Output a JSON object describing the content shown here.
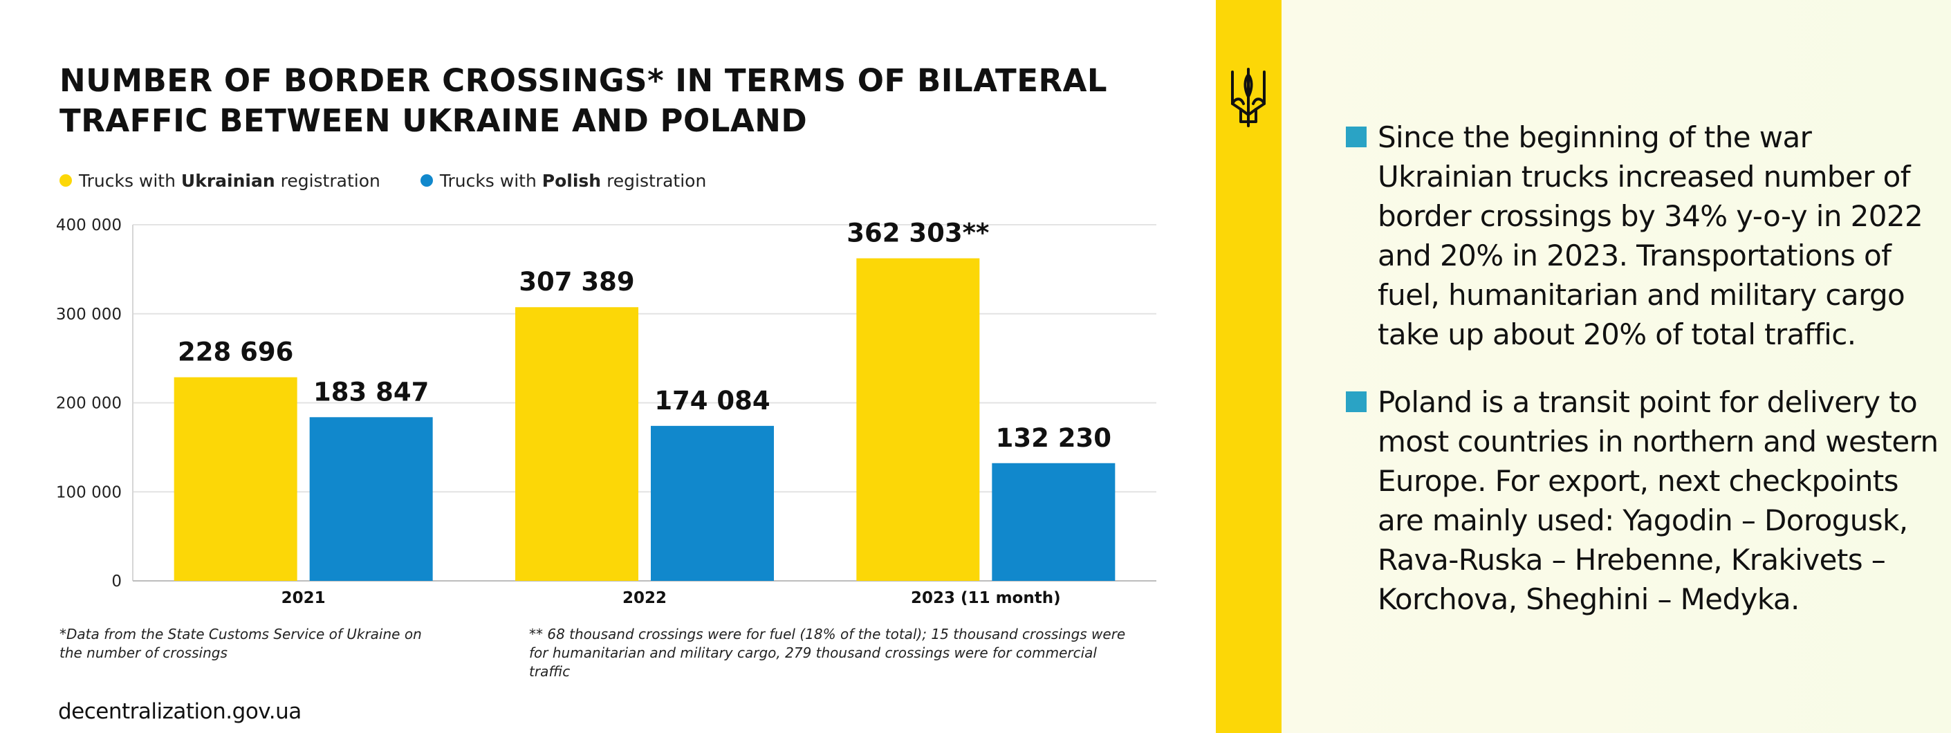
{
  "title_lines": [
    "NUMBER OF BORDER CROSSINGS* IN TERMS OF BILATERAL",
    "TRAFFIC BETWEEN UKRAINE AND POLAND"
  ],
  "legend": [
    {
      "prefix": "Trucks with ",
      "bold": "Ukrainian",
      "suffix": " registration",
      "color": "#fcd707"
    },
    {
      "prefix": "Trucks with ",
      "bold": "Polish",
      "suffix": " registration",
      "color": "#1188cc"
    }
  ],
  "chart_data": {
    "type": "bar",
    "title": "NUMBER OF BORDER CROSSINGS* IN TERMS OF BILATERAL TRAFFIC BETWEEN UKRAINE AND POLAND",
    "categories": [
      "2021",
      "2022",
      "2023 (11 month)"
    ],
    "series": [
      {
        "name": "Trucks with Ukrainian registration",
        "color": "#fcd707",
        "values": [
          228696,
          307389,
          362303
        ],
        "labels": [
          "228 696",
          "307 389",
          "362 303**"
        ]
      },
      {
        "name": "Trucks with Polish registration",
        "color": "#1188cc",
        "values": [
          183847,
          174084,
          132230
        ],
        "labels": [
          "183 847",
          "174 084",
          "132 230"
        ]
      }
    ],
    "ylim": [
      0,
      400000
    ],
    "yticks": [
      0,
      100000,
      200000,
      300000,
      400000
    ],
    "ytick_labels": [
      "0",
      "100 000",
      "200 000",
      "300 000",
      "400 000"
    ],
    "xlabel": "",
    "ylabel": "",
    "grid": true,
    "legend_position": "top-left"
  },
  "footnotes": {
    "note1": "*Data from the State Customs Service of Ukraine on the number of crossings",
    "note2": "** 68 thousand crossings were for fuel (18% of the total); 15 thousand crossings were for humanitarian and military cargo, 279 thousand crossings were for commercial traffic"
  },
  "source": "decentralization.gov.ua",
  "bullets": [
    "Since the beginning of the war Ukrainian trucks increased number of border crossings by 34% y-o-y in 2022 and 20% in 2023. Transportations of fuel, humanitarian and military cargo take up about 20% of total traffic.",
    "Poland is a transit point for delivery to most countries in northern and western Europe. For export, next checkpoints are mainly used: Yagodin – Dorogusk, Rava-Ruska – Hrebenne, Krakivets – Korchova, Sheghini – Medyka."
  ],
  "colors": {
    "stripe": "#fcd707",
    "bullet": "#2aa3c5",
    "grid": "#e3e3e3"
  },
  "icons": {
    "emblem": "trident-icon"
  }
}
